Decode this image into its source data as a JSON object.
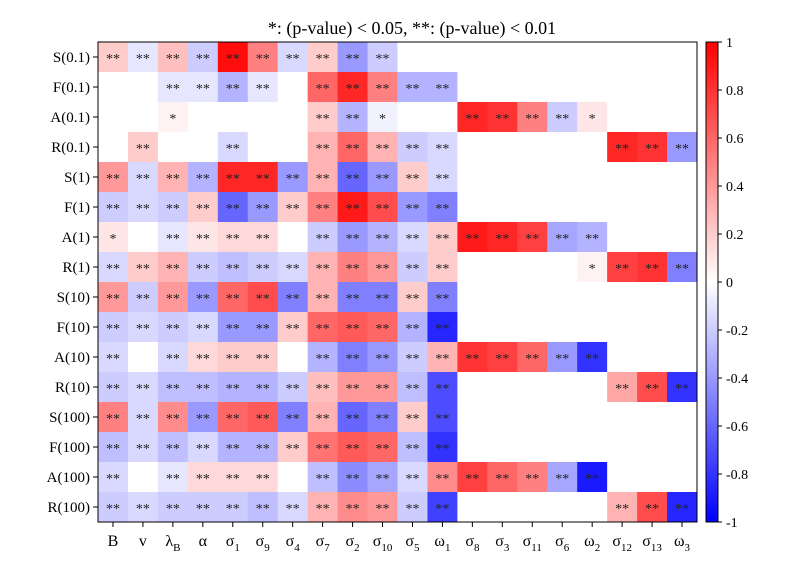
{
  "chart_data": {
    "type": "heatmap",
    "title": "*: (p-value) < 0.05, **: (p-value) < 0.01",
    "rows": [
      "S(0.1)",
      "F(0.1)",
      "A(0.1)",
      "R(0.1)",
      "S(1)",
      "F(1)",
      "A(1)",
      "R(1)",
      "S(10)",
      "F(10)",
      "A(10)",
      "R(10)",
      "S(100)",
      "F(100)",
      "A(100)",
      "R(100)"
    ],
    "columns": [
      {
        "base": "B",
        "sub": ""
      },
      {
        "base": "v",
        "sub": ""
      },
      {
        "base": "λ",
        "sub": "B"
      },
      {
        "base": "α",
        "sub": ""
      },
      {
        "base": "σ",
        "sub": "1"
      },
      {
        "base": "σ",
        "sub": "9"
      },
      {
        "base": "σ",
        "sub": "4"
      },
      {
        "base": "σ",
        "sub": "7"
      },
      {
        "base": "σ",
        "sub": "2"
      },
      {
        "base": "σ",
        "sub": "10"
      },
      {
        "base": "σ",
        "sub": "5"
      },
      {
        "base": "ω",
        "sub": "1"
      },
      {
        "base": "σ",
        "sub": "8"
      },
      {
        "base": "σ",
        "sub": "3"
      },
      {
        "base": "σ",
        "sub": "11"
      },
      {
        "base": "σ",
        "sub": "6"
      },
      {
        "base": "ω",
        "sub": "2"
      },
      {
        "base": "σ",
        "sub": "12"
      },
      {
        "base": "σ",
        "sub": "13"
      },
      {
        "base": "ω",
        "sub": "3"
      }
    ],
    "values": [
      [
        0.2,
        -0.1,
        0.25,
        -0.2,
        0.95,
        0.5,
        -0.15,
        0.2,
        -0.4,
        -0.2,
        0,
        0,
        0,
        0,
        0,
        0,
        0,
        0,
        0,
        0
      ],
      [
        0,
        0,
        -0.1,
        -0.1,
        -0.3,
        -0.1,
        0,
        0.6,
        0.85,
        0.5,
        -0.3,
        -0.3,
        0,
        0,
        0,
        0,
        0,
        0,
        0,
        0
      ],
      [
        0,
        0,
        0.05,
        0,
        0,
        0,
        0,
        0.2,
        -0.3,
        -0.05,
        0,
        0,
        0.85,
        0.8,
        0.5,
        -0.2,
        0.1,
        0,
        0,
        0
      ],
      [
        0,
        0.2,
        0,
        0,
        -0.15,
        0,
        0,
        0.3,
        0.6,
        0.3,
        -0.2,
        -0.15,
        0,
        0,
        0,
        0,
        0,
        0.85,
        0.8,
        -0.4
      ],
      [
        0.4,
        -0.15,
        0.3,
        -0.3,
        0.85,
        0.85,
        -0.4,
        0.3,
        -0.6,
        -0.4,
        0.2,
        -0.15,
        0,
        0,
        0,
        0,
        0,
        0,
        0,
        0
      ],
      [
        -0.2,
        -0.15,
        -0.2,
        0.2,
        -0.6,
        -0.4,
        0.2,
        0.5,
        0.9,
        0.7,
        -0.4,
        -0.5,
        0,
        0,
        0,
        0,
        0,
        0,
        0,
        0
      ],
      [
        0.1,
        0,
        -0.1,
        0.1,
        0.15,
        0.15,
        0,
        -0.2,
        -0.4,
        -0.3,
        -0.15,
        0.2,
        0.9,
        0.85,
        0.75,
        -0.35,
        -0.3,
        0,
        0,
        0
      ],
      [
        -0.15,
        0.2,
        0.3,
        -0.2,
        -0.25,
        -0.2,
        -0.15,
        0.3,
        0.5,
        0.4,
        -0.2,
        0.2,
        0,
        0,
        0,
        0,
        0.05,
        0.75,
        0.8,
        -0.5
      ],
      [
        0.4,
        -0.2,
        0.4,
        -0.4,
        0.6,
        0.7,
        -0.5,
        0.3,
        -0.5,
        -0.5,
        0.2,
        -0.5,
        0,
        0,
        0,
        0,
        0,
        0,
        0,
        0
      ],
      [
        -0.2,
        -0.15,
        -0.2,
        -0.15,
        -0.4,
        -0.4,
        0.2,
        0.6,
        0.65,
        0.6,
        -0.3,
        -0.85,
        0,
        0,
        0,
        0,
        0,
        0,
        0,
        0
      ],
      [
        -0.15,
        0,
        -0.15,
        0.15,
        0.2,
        0.2,
        0,
        -0.3,
        -0.5,
        -0.4,
        -0.2,
        0.3,
        0.8,
        0.75,
        0.6,
        -0.4,
        -0.8,
        0,
        0,
        0
      ],
      [
        -0.2,
        -0.15,
        -0.25,
        -0.25,
        -0.3,
        -0.3,
        -0.2,
        0.25,
        0.4,
        0.4,
        -0.25,
        -0.7,
        0,
        0,
        0,
        0,
        0,
        0.35,
        0.7,
        -0.8
      ],
      [
        0.5,
        -0.15,
        0.45,
        -0.4,
        0.6,
        0.65,
        -0.5,
        0.3,
        -0.6,
        -0.5,
        0.2,
        -0.7,
        0,
        0,
        0,
        0,
        0,
        0,
        0,
        0
      ],
      [
        -0.25,
        -0.15,
        -0.25,
        -0.15,
        -0.3,
        -0.3,
        0.2,
        0.55,
        0.65,
        0.6,
        -0.25,
        -0.8,
        0,
        0,
        0,
        0,
        0,
        0,
        0,
        0
      ],
      [
        -0.15,
        0,
        -0.1,
        0.15,
        0.15,
        0.15,
        0,
        -0.25,
        -0.45,
        -0.35,
        -0.15,
        0.45,
        0.75,
        0.6,
        0.5,
        -0.35,
        -0.9,
        0,
        0,
        0
      ],
      [
        -0.2,
        -0.15,
        -0.2,
        -0.2,
        -0.2,
        -0.25,
        -0.15,
        0.3,
        0.45,
        0.4,
        -0.2,
        -0.75,
        0,
        0,
        0,
        0,
        0,
        0.3,
        0.7,
        -0.85
      ]
    ],
    "significance": [
      [
        "**",
        "**",
        "**",
        "**",
        "**",
        "**",
        "**",
        "**",
        "**",
        "**",
        "",
        "",
        "",
        "",
        "",
        "",
        "",
        "",
        "",
        ""
      ],
      [
        "",
        "",
        "**",
        "**",
        "**",
        "**",
        "",
        "**",
        "**",
        "**",
        "**",
        "**",
        "",
        "",
        "",
        "",
        "",
        "",
        "",
        ""
      ],
      [
        "",
        "",
        "*",
        "",
        "",
        "",
        "",
        "**",
        "**",
        "*",
        "",
        "",
        "**",
        "**",
        "**",
        "**",
        "*",
        "",
        "",
        ""
      ],
      [
        "",
        "**",
        "",
        "",
        "**",
        "",
        "",
        "**",
        "**",
        "**",
        "**",
        "**",
        "",
        "",
        "",
        "",
        "",
        "**",
        "**",
        "**"
      ],
      [
        "**",
        "**",
        "**",
        "**",
        "**",
        "**",
        "**",
        "**",
        "**",
        "**",
        "**",
        "**",
        "",
        "",
        "",
        "",
        "",
        "",
        "",
        ""
      ],
      [
        "**",
        "**",
        "**",
        "**",
        "**",
        "**",
        "**",
        "**",
        "**",
        "**",
        "**",
        "**",
        "",
        "",
        "",
        "",
        "",
        "",
        "",
        ""
      ],
      [
        "*",
        "",
        "**",
        "**",
        "**",
        "**",
        "",
        "**",
        "**",
        "**",
        "**",
        "**",
        "**",
        "**",
        "**",
        "**",
        "**",
        "",
        "",
        ""
      ],
      [
        "**",
        "**",
        "**",
        "**",
        "**",
        "**",
        "**",
        "**",
        "**",
        "**",
        "**",
        "**",
        "",
        "",
        "",
        "",
        "*",
        "**",
        "**",
        "**"
      ],
      [
        "**",
        "**",
        "**",
        "**",
        "**",
        "**",
        "**",
        "**",
        "**",
        "**",
        "**",
        "**",
        "",
        "",
        "",
        "",
        "",
        "",
        "",
        ""
      ],
      [
        "**",
        "**",
        "**",
        "**",
        "**",
        "**",
        "**",
        "**",
        "**",
        "**",
        "**",
        "**",
        "",
        "",
        "",
        "",
        "",
        "",
        "",
        ""
      ],
      [
        "**",
        "",
        "**",
        "**",
        "**",
        "**",
        "",
        "**",
        "**",
        "**",
        "**",
        "**",
        "**",
        "**",
        "**",
        "**",
        "**",
        "",
        "",
        ""
      ],
      [
        "**",
        "**",
        "**",
        "**",
        "**",
        "**",
        "**",
        "**",
        "**",
        "**",
        "**",
        "**",
        "",
        "",
        "",
        "",
        "",
        "**",
        "**",
        "**"
      ],
      [
        "**",
        "**",
        "**",
        "**",
        "**",
        "**",
        "**",
        "**",
        "**",
        "**",
        "**",
        "**",
        "",
        "",
        "",
        "",
        "",
        "",
        "",
        ""
      ],
      [
        "**",
        "**",
        "**",
        "**",
        "**",
        "**",
        "**",
        "**",
        "**",
        "**",
        "**",
        "**",
        "",
        "",
        "",
        "",
        "",
        "",
        "",
        ""
      ],
      [
        "**",
        "",
        "**",
        "**",
        "**",
        "**",
        "",
        "**",
        "**",
        "**",
        "**",
        "**",
        "**",
        "**",
        "**",
        "**",
        "**",
        "",
        "",
        ""
      ],
      [
        "**",
        "**",
        "**",
        "**",
        "**",
        "**",
        "**",
        "**",
        "**",
        "**",
        "**",
        "**",
        "",
        "",
        "",
        "",
        "",
        "**",
        "**",
        "**"
      ]
    ],
    "colorbar": {
      "range": [
        -1,
        1
      ],
      "ticks": [
        1,
        0.8,
        0.6,
        0.4,
        0.2,
        0,
        -0.2,
        -0.4,
        -0.6,
        -0.8,
        -1
      ],
      "tick_labels": [
        "1",
        "0.8",
        "0.6",
        "0.4",
        "0.2",
        "0",
        "-0.2",
        "-0.4",
        "-0.6",
        "-0.8",
        "-1"
      ],
      "colors": {
        "negative": "#0000ff",
        "zero": "#ffffff",
        "positive": "#ff0000"
      }
    }
  }
}
